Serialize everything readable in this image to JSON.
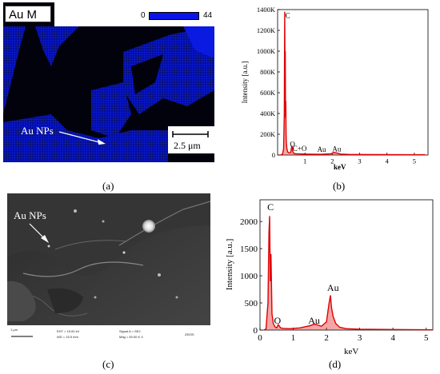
{
  "panel_a": {
    "title": "Au M",
    "scale_min": "0",
    "scale_max": "44",
    "nps_label": "Au NPs",
    "scale_bar_label": "2.5 μm",
    "caption": "(a)"
  },
  "panel_c": {
    "nps_label": "Au NPs",
    "info": {
      "scale": "1 μm",
      "eht": "EHT = 15.00 kV",
      "wd": "WD = 15.5 mm",
      "signal": "Signal A = SE2",
      "mag": "Mag = 50.00 K X",
      "logo": "ZEISS"
    },
    "caption": "(c)"
  },
  "chart_data": [
    {
      "type": "line",
      "panel": "(b)",
      "xlabel": "keV",
      "ylabel": "Intensity [a.u.]",
      "xlim": [
        0,
        5.5
      ],
      "ylim": [
        0,
        1400000
      ],
      "x_ticks": [
        "1",
        "2",
        "3",
        "4",
        "5"
      ],
      "y_ticks": [
        "0",
        "200K",
        "400K",
        "600K",
        "800K",
        "1000K",
        "1200K",
        "1400K"
      ],
      "series": [
        {
          "color": "#e00000",
          "x": [
            0.1,
            0.18,
            0.22,
            0.245,
            0.26,
            0.27,
            0.28,
            0.29,
            0.3,
            0.31,
            0.32,
            0.34,
            0.37,
            0.42,
            0.48,
            0.52,
            0.56,
            0.6,
            0.7,
            0.9,
            1.2,
            1.6,
            1.95,
            2.05,
            2.12,
            2.2,
            2.3,
            2.6,
            3.0,
            5.4
          ],
          "y": [
            0,
            8000,
            60000,
            400000,
            1380000,
            800000,
            1000000,
            360000,
            520000,
            200000,
            120000,
            60000,
            30000,
            20000,
            25000,
            90000,
            30000,
            15000,
            12000,
            10000,
            8000,
            7000,
            12000,
            25000,
            22000,
            18000,
            9000,
            6000,
            5000,
            3000
          ]
        }
      ],
      "annotations": [
        "C",
        "O",
        "C+O",
        "Au",
        "Au"
      ],
      "caption": "(b)"
    },
    {
      "type": "line",
      "panel": "(d)",
      "xlabel": "keV",
      "ylabel": "Intensity [a.u.]",
      "xlim": [
        0,
        5.2
      ],
      "ylim": [
        0,
        2400
      ],
      "x_ticks": [
        "0",
        "1",
        "2",
        "3",
        "4",
        "5"
      ],
      "y_ticks": [
        "0",
        "500",
        "1000",
        "1500",
        "2000"
      ],
      "series": [
        {
          "color": "#e00000",
          "x": [
            0.12,
            0.18,
            0.24,
            0.27,
            0.29,
            0.31,
            0.33,
            0.36,
            0.4,
            0.45,
            0.5,
            0.55,
            0.62,
            0.7,
            0.9,
            1.2,
            1.5,
            1.65,
            1.75,
            1.85,
            2.0,
            2.08,
            2.12,
            2.15,
            2.2,
            2.28,
            2.4,
            2.6,
            3.0,
            4.0,
            5.2
          ],
          "y": [
            0,
            20,
            500,
            1800,
            2100,
            900,
            1400,
            300,
            120,
            60,
            40,
            100,
            40,
            30,
            25,
            40,
            80,
            110,
            90,
            70,
            150,
            500,
            640,
            420,
            250,
            120,
            50,
            25,
            15,
            10,
            5
          ]
        }
      ],
      "annotations": [
        "C",
        "O",
        "Au",
        "Au"
      ],
      "caption": "(d)"
    }
  ]
}
